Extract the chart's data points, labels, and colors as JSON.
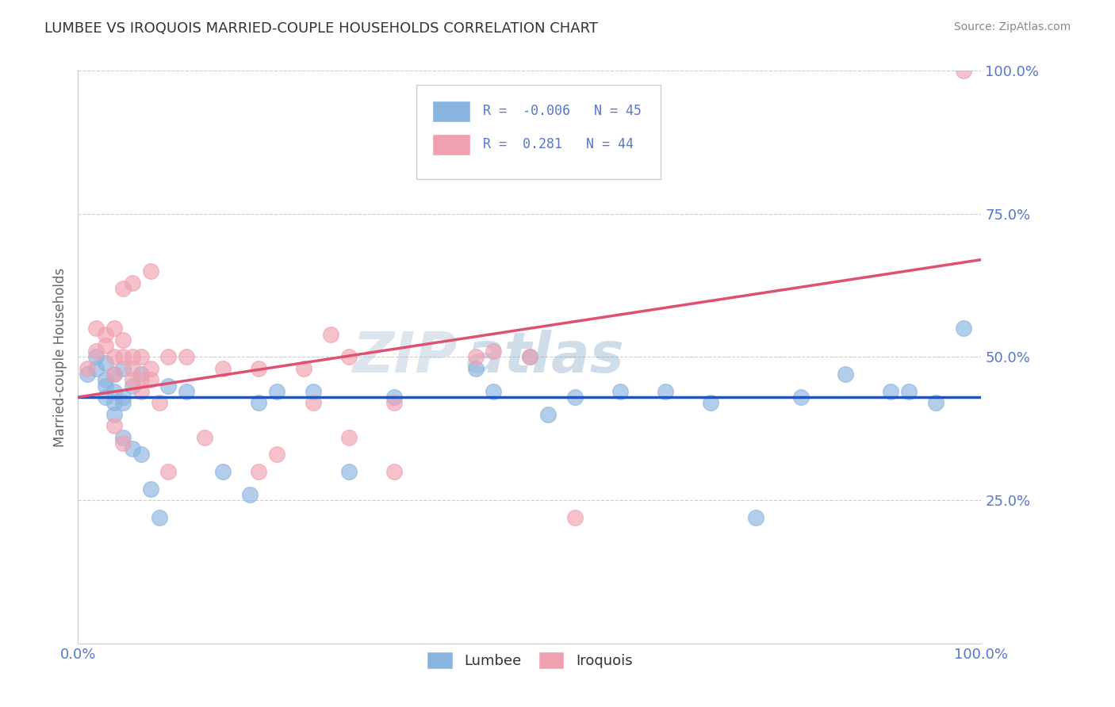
{
  "title": "LUMBEE VS IROQUOIS MARRIED-COUPLE HOUSEHOLDS CORRELATION CHART",
  "source": "Source: ZipAtlas.com",
  "ylabel": "Married-couple Households",
  "lumbee_R": -0.006,
  "lumbee_N": 45,
  "iroquois_R": 0.281,
  "iroquois_N": 44,
  "lumbee_color": "#8ab4e0",
  "iroquois_color": "#f0a0b0",
  "lumbee_line_color": "#2255BB",
  "iroquois_line_color": "#E05070",
  "lumbee_x": [
    0.01,
    0.02,
    0.02,
    0.03,
    0.03,
    0.03,
    0.03,
    0.04,
    0.04,
    0.04,
    0.04,
    0.05,
    0.05,
    0.05,
    0.05,
    0.06,
    0.06,
    0.07,
    0.07,
    0.08,
    0.09,
    0.1,
    0.12,
    0.16,
    0.19,
    0.22,
    0.26,
    0.3,
    0.44,
    0.46,
    0.5,
    0.52,
    0.6,
    0.65,
    0.7,
    0.75,
    0.8,
    0.85,
    0.9,
    0.92,
    0.95,
    0.98,
    0.2,
    0.35,
    0.55
  ],
  "lumbee_y": [
    0.47,
    0.5,
    0.48,
    0.49,
    0.46,
    0.45,
    0.43,
    0.47,
    0.44,
    0.42,
    0.4,
    0.48,
    0.43,
    0.42,
    0.36,
    0.45,
    0.34,
    0.47,
    0.33,
    0.27,
    0.22,
    0.45,
    0.44,
    0.3,
    0.26,
    0.44,
    0.44,
    0.3,
    0.48,
    0.44,
    0.5,
    0.4,
    0.44,
    0.44,
    0.42,
    0.22,
    0.43,
    0.47,
    0.44,
    0.44,
    0.42,
    0.55,
    0.42,
    0.43,
    0.43
  ],
  "iroquois_x": [
    0.01,
    0.02,
    0.02,
    0.03,
    0.03,
    0.04,
    0.04,
    0.04,
    0.05,
    0.05,
    0.05,
    0.06,
    0.06,
    0.06,
    0.07,
    0.07,
    0.07,
    0.08,
    0.08,
    0.09,
    0.1,
    0.12,
    0.14,
    0.16,
    0.2,
    0.22,
    0.26,
    0.28,
    0.3,
    0.3,
    0.35,
    0.35,
    0.44,
    0.46,
    0.5,
    0.55,
    0.2,
    0.1,
    0.08,
    0.06,
    0.98,
    0.05,
    0.04,
    0.25
  ],
  "iroquois_y": [
    0.48,
    0.55,
    0.51,
    0.52,
    0.54,
    0.5,
    0.55,
    0.47,
    0.53,
    0.5,
    0.62,
    0.5,
    0.48,
    0.46,
    0.5,
    0.46,
    0.44,
    0.48,
    0.46,
    0.42,
    0.5,
    0.5,
    0.36,
    0.48,
    0.48,
    0.33,
    0.42,
    0.54,
    0.5,
    0.36,
    0.42,
    0.3,
    0.5,
    0.51,
    0.5,
    0.22,
    0.3,
    0.3,
    0.65,
    0.63,
    1.0,
    0.35,
    0.38,
    0.48
  ],
  "lumbee_line_x": [
    0.0,
    1.0
  ],
  "lumbee_line_y": [
    0.43,
    0.43
  ],
  "iroquois_line_x": [
    0.0,
    1.0
  ],
  "iroquois_line_y": [
    0.43,
    0.67
  ],
  "xlim": [
    0.0,
    1.0
  ],
  "ylim": [
    0.0,
    1.0
  ],
  "yticks": [
    0.25,
    0.5,
    0.75,
    1.0
  ],
  "ytick_labels": [
    "25.0%",
    "50.0%",
    "75.0%",
    "100.0%"
  ],
  "xticks": [
    0.0,
    1.0
  ],
  "xtick_labels": [
    "0.0%",
    "100.0%"
  ],
  "watermark_zip": "ZIP",
  "watermark_atlas": "atlas",
  "background_color": "#FFFFFF",
  "grid_color": "#CCCCCC",
  "tick_color": "#5577CC",
  "title_color": "#333333",
  "source_color": "#888888",
  "ylabel_color": "#666666"
}
